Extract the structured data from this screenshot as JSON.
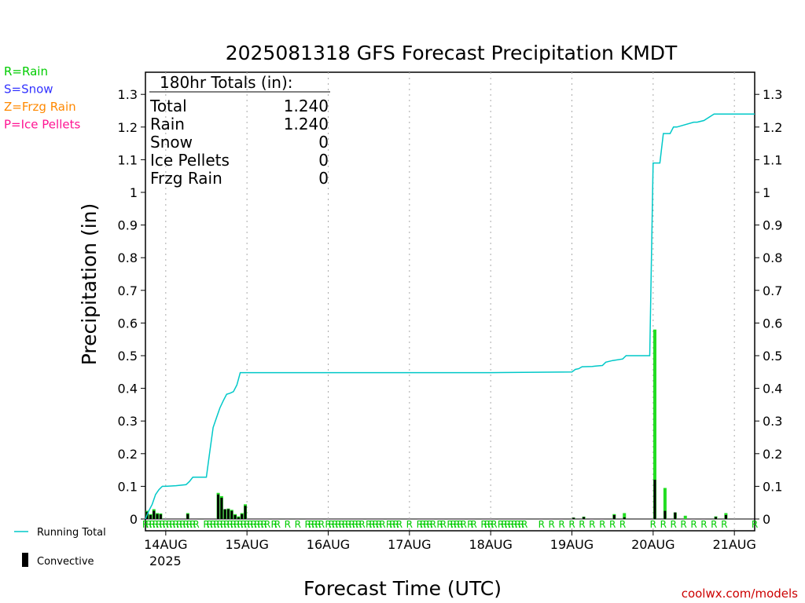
{
  "chart_data": {
    "type": "bar",
    "title": "2025081318 GFS Forecast Precipitation KMDT",
    "xlabel": "Forecast Time (UTC)",
    "ylabel": "Precipitation (in)",
    "ylim": [
      0,
      1.35
    ],
    "xlim_hours": [
      0,
      180
    ],
    "yticks": [
      "0",
      "0.1",
      "0.2",
      "0.3",
      "0.4",
      "0.5",
      "0.6",
      "0.7",
      "0.8",
      "0.9",
      "1",
      "1.1",
      "1.2",
      "1.3"
    ],
    "ytick_values": [
      0,
      0.1,
      0.2,
      0.3,
      0.4,
      0.5,
      0.6,
      0.7,
      0.8,
      0.9,
      1.0,
      1.1,
      1.2,
      1.3
    ],
    "xticks": [
      {
        "hour": 6,
        "label": "14AUG"
      },
      {
        "hour": 30,
        "label": "15AUG"
      },
      {
        "hour": 54,
        "label": "16AUG"
      },
      {
        "hour": 78,
        "label": "17AUG"
      },
      {
        "hour": 102,
        "label": "18AUG"
      },
      {
        "hour": 126,
        "label": "19AUG"
      },
      {
        "hour": 150,
        "label": "20AUG"
      },
      {
        "hour": 174,
        "label": "21AUG"
      }
    ],
    "year_label": "2025",
    "grid": "vertical dotted",
    "totals_box": {
      "header": "180hr Totals (in):",
      "rows": [
        {
          "label": "Total",
          "value": "1.240"
        },
        {
          "label": "Rain",
          "value": "1.240"
        },
        {
          "label": "Snow",
          "value": "0"
        },
        {
          "label": "Ice Pellets",
          "value": "0"
        },
        {
          "label": "Frzg Rain",
          "value": "0"
        }
      ]
    },
    "ptype_legend": [
      {
        "text": "R=Rain",
        "color": "#00cc00"
      },
      {
        "text": "S=Snow",
        "color": "#3333ff"
      },
      {
        "text": "Z=Frzg Rain",
        "color": "#ff8800"
      },
      {
        "text": "P=Ice Pellets",
        "color": "#ff1493"
      }
    ],
    "legend": [
      {
        "name": "Running Total",
        "color": "#00c8c8"
      },
      {
        "name": "Convective",
        "color": "#000000"
      }
    ],
    "running_total": {
      "hours": [
        0,
        1,
        2,
        3,
        4,
        5,
        6,
        9,
        12,
        13,
        14,
        15,
        18,
        19,
        20,
        21,
        22,
        23,
        24,
        25,
        26,
        27,
        28,
        29,
        30,
        102,
        126,
        127,
        128,
        129,
        132,
        133,
        134,
        135,
        136,
        138,
        141,
        142,
        143,
        144,
        145,
        146,
        147,
        149,
        150,
        151,
        152,
        153,
        154,
        155,
        156,
        157,
        162,
        163,
        165,
        168,
        180
      ],
      "values": [
        0,
        0.025,
        0.045,
        0.075,
        0.09,
        0.1,
        0.1,
        0.102,
        0.105,
        0.115,
        0.128,
        0.128,
        0.128,
        0.205,
        0.28,
        0.31,
        0.34,
        0.362,
        0.382,
        0.385,
        0.39,
        0.41,
        0.448,
        0.448,
        0.448,
        0.448,
        0.45,
        0.458,
        0.46,
        0.466,
        0.467,
        0.468,
        0.469,
        0.47,
        0.48,
        0.485,
        0.49,
        0.5,
        0.5,
        0.5,
        0.5,
        0.5,
        0.5,
        0.5,
        1.09,
        1.09,
        1.09,
        1.18,
        1.18,
        1.18,
        1.2,
        1.2,
        1.215,
        1.215,
        1.22,
        1.24,
        1.24
      ]
    },
    "precip_bars": {
      "hours": [
        0.5,
        1.5,
        2.5,
        3.5,
        4.5,
        12.5,
        21.5,
        22.5,
        23.5,
        24.5,
        25.5,
        26.5,
        27.5,
        28.5,
        29.5,
        126.5,
        129.5,
        138.5,
        141.5,
        150.5,
        153.5,
        156.5,
        159.5,
        168.5,
        171.5
      ],
      "values": [
        0.025,
        0.015,
        0.03,
        0.018,
        0.017,
        0.018,
        0.08,
        0.07,
        0.03,
        0.032,
        0.028,
        0.015,
        0.008,
        0.018,
        0.045,
        0.004,
        0.007,
        0.015,
        0.018,
        0.58,
        0.095,
        0.02,
        0.01,
        0.008,
        0.018
      ]
    },
    "convective_bars": {
      "hours": [
        0.5,
        1.5,
        2.5,
        3.5,
        4.5,
        12.5,
        21.5,
        22.5,
        23.5,
        24.5,
        25.5,
        26.5,
        27.5,
        28.5,
        29.5,
        126.5,
        129.5,
        138.5,
        141.5,
        150.5,
        153.5,
        156.5,
        168.5,
        171.5
      ],
      "values": [
        0.022,
        0.012,
        0.025,
        0.015,
        0.014,
        0.015,
        0.075,
        0.065,
        0.03,
        0.03,
        0.025,
        0.012,
        0.005,
        0.015,
        0.04,
        0.004,
        0.006,
        0.012,
        0.005,
        0.12,
        0.025,
        0.02,
        0.006,
        0.012
      ]
    },
    "ptype_markers": {
      "label": "R",
      "hours": [
        0,
        1,
        2,
        3,
        4,
        5,
        6,
        7,
        8,
        9,
        10,
        11,
        12,
        13,
        14,
        15,
        18,
        19,
        20,
        21,
        22,
        23,
        24,
        25,
        26,
        27,
        28,
        29,
        30,
        31,
        32,
        33,
        34,
        35,
        36,
        38,
        39,
        42,
        45,
        48,
        49,
        50,
        51,
        52,
        54,
        55,
        56,
        57,
        58,
        59,
        60,
        61,
        62,
        63,
        64,
        66,
        67,
        68,
        69,
        70,
        72,
        73,
        74,
        75,
        78,
        81,
        82,
        83,
        84,
        85,
        87,
        88,
        90,
        91,
        92,
        93,
        94,
        96,
        97,
        100,
        101,
        102,
        103,
        105,
        106,
        107,
        108,
        109,
        110,
        111,
        112,
        117,
        120,
        123,
        126,
        129,
        132,
        135,
        138,
        141,
        150,
        153,
        156,
        159,
        162,
        165,
        168,
        171,
        180
      ]
    }
  },
  "source": "coolwx.com/models"
}
